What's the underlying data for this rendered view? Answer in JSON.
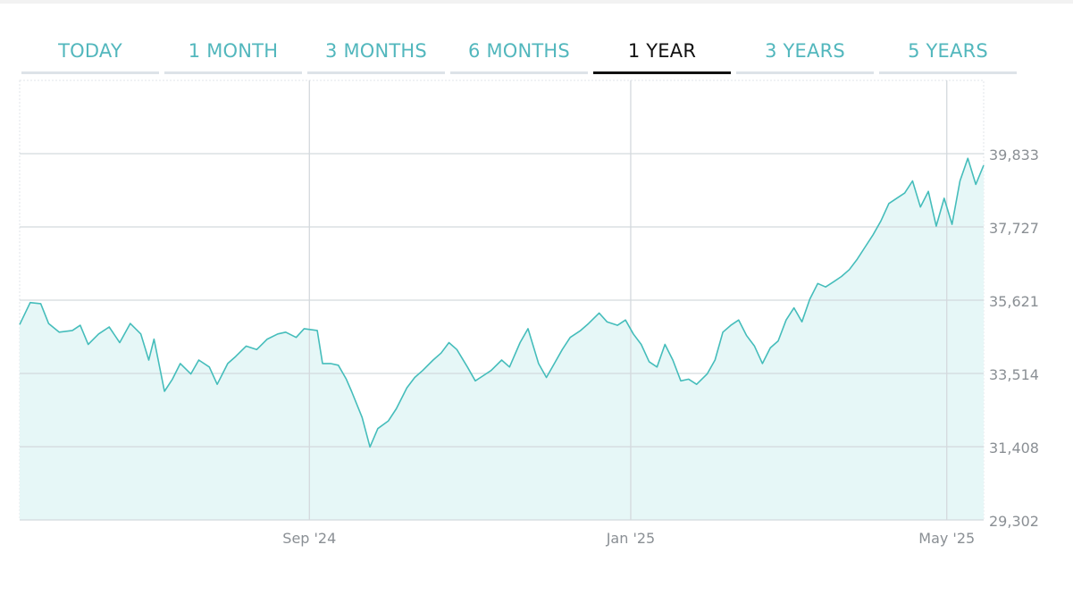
{
  "tabs": [
    {
      "label": "TODAY",
      "active": false
    },
    {
      "label": "1 MONTH",
      "active": false
    },
    {
      "label": "3 MONTHS",
      "active": false
    },
    {
      "label": "6 MONTHS",
      "active": false
    },
    {
      "label": "1 YEAR",
      "active": true
    },
    {
      "label": "3 YEARS",
      "active": false
    },
    {
      "label": "5 YEARS",
      "active": false
    }
  ],
  "colors": {
    "accent": "#52b7bd",
    "line": "#45bdbb",
    "fill": "#e6f7f7",
    "grid": "#d4d9dd",
    "tab_inactive_bar": "#dde3e8",
    "tab_active": "#111111"
  },
  "chart_data": {
    "type": "area",
    "title": "",
    "xlabel": "",
    "ylabel": "",
    "ylim": [
      29302,
      41939
    ],
    "yticks": [
      29302,
      31408,
      33514,
      35621,
      37727,
      39833
    ],
    "ytick_labels": [
      "29,302",
      "31,408",
      "33,514",
      "35,621",
      "37,727",
      "39,833"
    ],
    "xlim": [
      "2024-05-14",
      "2025-05-15"
    ],
    "xticks": [
      {
        "date": "2024-09-01",
        "label": "Sep '24"
      },
      {
        "date": "2025-01-01",
        "label": "Jan '25"
      },
      {
        "date": "2025-05-01",
        "label": "May '25"
      }
    ],
    "grid": true,
    "series": [
      {
        "points": [
          [
            "2024-05-14",
            34920
          ],
          [
            "2024-05-18",
            35550
          ],
          [
            "2024-05-22",
            35520
          ],
          [
            "2024-05-25",
            34950
          ],
          [
            "2024-05-29",
            34700
          ],
          [
            "2024-06-03",
            34750
          ],
          [
            "2024-06-06",
            34900
          ],
          [
            "2024-06-09",
            34350
          ],
          [
            "2024-06-13",
            34650
          ],
          [
            "2024-06-17",
            34850
          ],
          [
            "2024-06-21",
            34400
          ],
          [
            "2024-06-25",
            34950
          ],
          [
            "2024-06-29",
            34650
          ],
          [
            "2024-07-02",
            33900
          ],
          [
            "2024-07-04",
            34500
          ],
          [
            "2024-07-08",
            33000
          ],
          [
            "2024-07-11",
            33350
          ],
          [
            "2024-07-14",
            33800
          ],
          [
            "2024-07-18",
            33500
          ],
          [
            "2024-07-21",
            33900
          ],
          [
            "2024-07-25",
            33700
          ],
          [
            "2024-07-28",
            33200
          ],
          [
            "2024-08-01",
            33800
          ],
          [
            "2024-08-04",
            34000
          ],
          [
            "2024-08-08",
            34300
          ],
          [
            "2024-08-12",
            34200
          ],
          [
            "2024-08-16",
            34500
          ],
          [
            "2024-08-20",
            34650
          ],
          [
            "2024-08-23",
            34700
          ],
          [
            "2024-08-27",
            34550
          ],
          [
            "2024-08-30",
            34800
          ],
          [
            "2024-09-04",
            34750
          ],
          [
            "2024-09-06",
            33800
          ],
          [
            "2024-09-09",
            33800
          ],
          [
            "2024-09-12",
            33750
          ],
          [
            "2024-09-15",
            33350
          ],
          [
            "2024-09-17",
            33000
          ],
          [
            "2024-09-21",
            32250
          ],
          [
            "2024-09-24",
            31400
          ],
          [
            "2024-09-27",
            31930
          ],
          [
            "2024-10-01",
            32150
          ],
          [
            "2024-10-04",
            32500
          ],
          [
            "2024-10-08",
            33100
          ],
          [
            "2024-10-11",
            33400
          ],
          [
            "2024-10-14",
            33600
          ],
          [
            "2024-10-18",
            33900
          ],
          [
            "2024-10-21",
            34100
          ],
          [
            "2024-10-24",
            34400
          ],
          [
            "2024-10-27",
            34200
          ],
          [
            "2024-10-31",
            33700
          ],
          [
            "2024-11-03",
            33300
          ],
          [
            "2024-11-06",
            33450
          ],
          [
            "2024-11-09",
            33600
          ],
          [
            "2024-11-13",
            33900
          ],
          [
            "2024-11-16",
            33700
          ],
          [
            "2024-11-20",
            34400
          ],
          [
            "2024-11-23",
            34800
          ],
          [
            "2024-11-27",
            33800
          ],
          [
            "2024-11-30",
            33400
          ],
          [
            "2024-12-03",
            33800
          ],
          [
            "2024-12-06",
            34200
          ],
          [
            "2024-12-09",
            34550
          ],
          [
            "2024-12-13",
            34750
          ],
          [
            "2024-12-16",
            34950
          ],
          [
            "2024-12-20",
            35250
          ],
          [
            "2024-12-23",
            35000
          ],
          [
            "2024-12-27",
            34900
          ],
          [
            "2024-12-30",
            35050
          ],
          [
            "2025-01-02",
            34650
          ],
          [
            "2025-01-05",
            34350
          ],
          [
            "2025-01-08",
            33850
          ],
          [
            "2025-01-11",
            33700
          ],
          [
            "2025-01-14",
            34350
          ],
          [
            "2025-01-17",
            33900
          ],
          [
            "2025-01-20",
            33300
          ],
          [
            "2025-01-23",
            33350
          ],
          [
            "2025-01-26",
            33200
          ],
          [
            "2025-01-30",
            33500
          ],
          [
            "2025-02-02",
            33900
          ],
          [
            "2025-02-05",
            34700
          ],
          [
            "2025-02-08",
            34900
          ],
          [
            "2025-02-11",
            35050
          ],
          [
            "2025-02-14",
            34600
          ],
          [
            "2025-02-17",
            34300
          ],
          [
            "2025-02-20",
            33800
          ],
          [
            "2025-02-23",
            34250
          ],
          [
            "2025-02-26",
            34450
          ],
          [
            "2025-03-01",
            35050
          ],
          [
            "2025-03-04",
            35400
          ],
          [
            "2025-03-07",
            35000
          ],
          [
            "2025-03-10",
            35650
          ],
          [
            "2025-03-13",
            36100
          ],
          [
            "2025-03-16",
            36000
          ],
          [
            "2025-03-19",
            36150
          ],
          [
            "2025-03-22",
            36300
          ],
          [
            "2025-03-25",
            36500
          ],
          [
            "2025-03-28",
            36800
          ],
          [
            "2025-03-31",
            37150
          ],
          [
            "2025-04-03",
            37500
          ],
          [
            "2025-04-06",
            37900
          ],
          [
            "2025-04-09",
            38400
          ],
          [
            "2025-04-12",
            38550
          ],
          [
            "2025-04-15",
            38700
          ],
          [
            "2025-04-18",
            39050
          ],
          [
            "2025-04-21",
            38300
          ],
          [
            "2025-04-24",
            38750
          ],
          [
            "2025-04-27",
            37750
          ],
          [
            "2025-04-30",
            38550
          ],
          [
            "2025-05-03",
            37800
          ],
          [
            "2025-05-06",
            39050
          ],
          [
            "2025-05-09",
            39700
          ],
          [
            "2025-05-12",
            38950
          ],
          [
            "2025-05-15",
            39500
          ]
        ]
      }
    ]
  }
}
